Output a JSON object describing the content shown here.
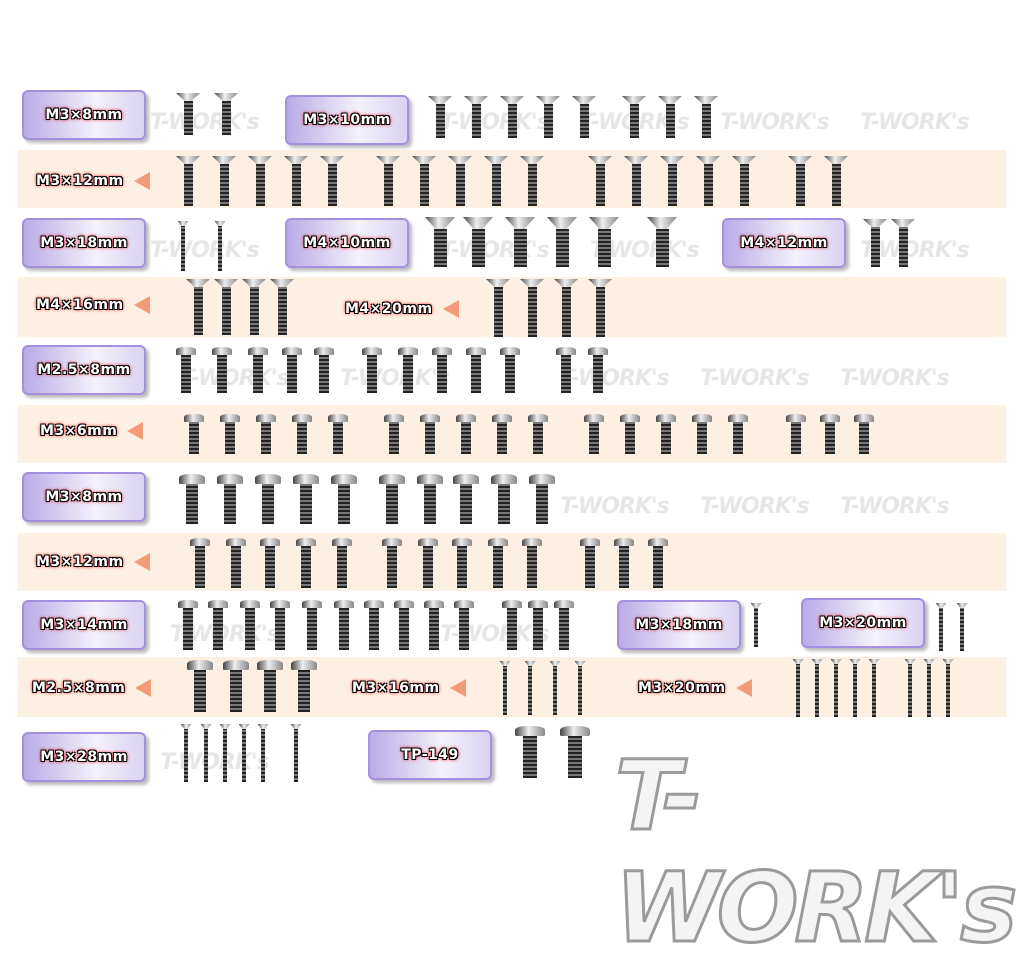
{
  "watermark": "T-WORK's",
  "logo": "T-WORK's",
  "colors": {
    "band": "#fdf0e2",
    "box_border": "#a58fe0",
    "arrow": "#f39a78",
    "label_glow": "#ee0000"
  },
  "labels": {
    "r1a": "M3×8mm",
    "r1b": "M3×10mm",
    "r2a": "M3×12mm",
    "r3a": "M3×18mm",
    "r3b": "M4×10mm",
    "r3c": "M4×12mm",
    "r4a": "M4×16mm",
    "r4b": "M4×20mm",
    "r5a": "M2.5×8mm",
    "r6a": "M3×6mm",
    "r7a": "M3×8mm",
    "r8a": "M3×12mm",
    "r9a": "M3×14mm",
    "r9b": "M3×18mm",
    "r9c": "M3×20mm",
    "r10a": "M2.5×8mm",
    "r10b": "M3×16mm",
    "r10c": "M3×20mm",
    "r11a": "M3×28mm",
    "r11b": "TP-149"
  }
}
